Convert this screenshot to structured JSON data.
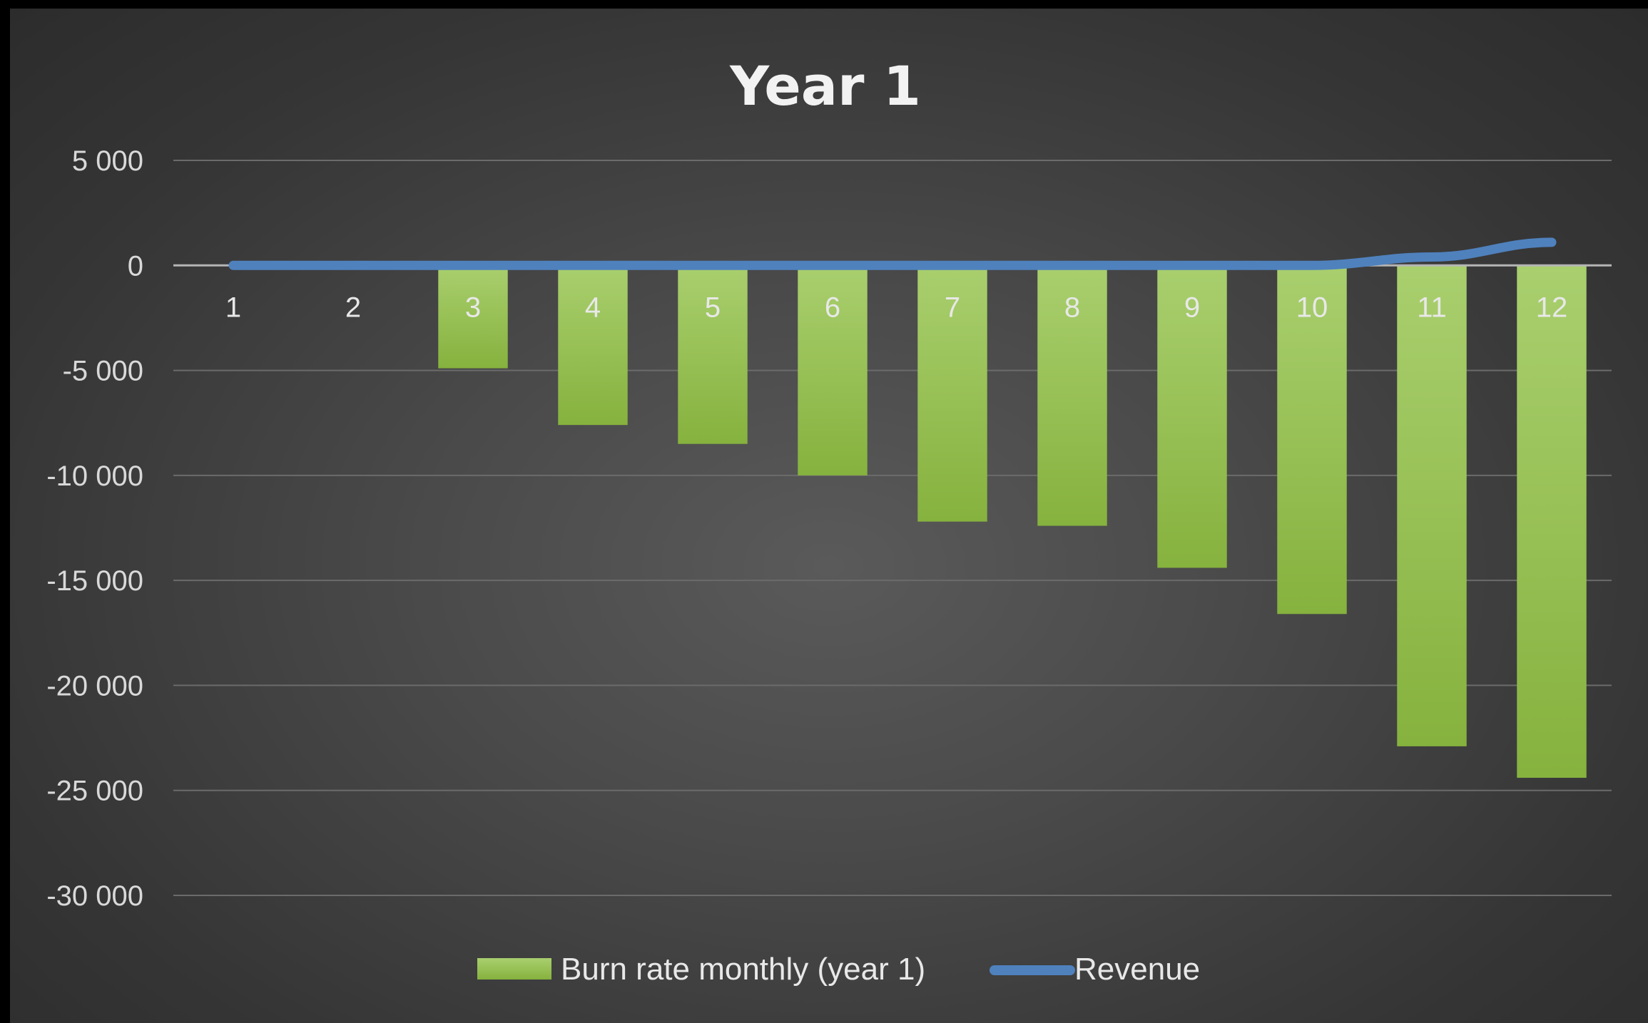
{
  "chart_data": {
    "type": "bar",
    "title": "Year 1",
    "categories": [
      "1",
      "2",
      "3",
      "4",
      "5",
      "6",
      "7",
      "8",
      "9",
      "10",
      "11",
      "12"
    ],
    "series": [
      {
        "name": "Burn rate monthly (year 1)",
        "type": "bar",
        "values": [
          0,
          0,
          -4900,
          -7600,
          -8500,
          -10000,
          -12200,
          -12400,
          -14400,
          -16600,
          -22900,
          -24400
        ]
      },
      {
        "name": "Revenue",
        "type": "line",
        "values": [
          0,
          0,
          0,
          0,
          0,
          0,
          0,
          0,
          0,
          0,
          400,
          1100
        ]
      }
    ],
    "y_ticks": [
      "5 000",
      "0",
      "-5 000",
      "-10 000",
      "-15 000",
      "-20 000",
      "-25 000",
      "-30 000"
    ],
    "ylim": [
      -30000,
      5000
    ],
    "grid": true,
    "legend_position": "bottom",
    "colors": {
      "bar_top": "#a9cf6e",
      "bar_bottom": "#86b23e",
      "line": "#4f81bd",
      "grid": "#6b6b6b",
      "zero_line": "#b5b5b5"
    }
  }
}
